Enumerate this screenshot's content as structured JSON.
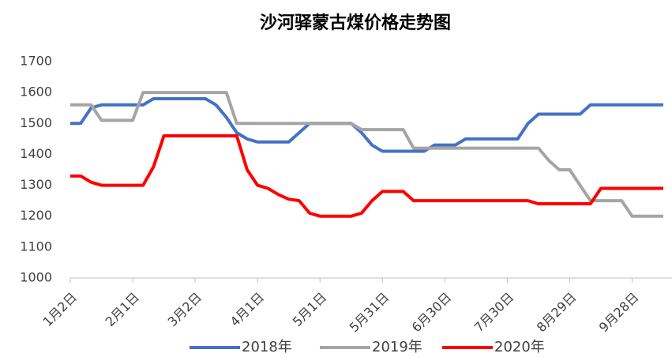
{
  "chart_data": {
    "type": "line",
    "title": "沙河驿蒙古煤价格走势图",
    "categories": [
      "1月2日",
      null,
      null,
      null,
      null,
      null,
      "2月1日",
      null,
      null,
      null,
      null,
      null,
      "3月2日",
      null,
      null,
      null,
      null,
      null,
      "4月1日",
      null,
      null,
      null,
      null,
      null,
      "5月1日",
      null,
      null,
      null,
      null,
      null,
      "5月31日",
      null,
      null,
      null,
      null,
      null,
      "6月30日",
      null,
      null,
      null,
      null,
      null,
      "7月30日",
      null,
      null,
      null,
      null,
      null,
      "8月29日",
      null,
      null,
      null,
      null,
      null,
      "9月28日",
      null,
      null,
      null
    ],
    "series": [
      {
        "name": "2018年",
        "color": "#4472c4",
        "values": [
          1500,
          1500,
          1550,
          1560,
          1560,
          1560,
          1560,
          1560,
          1580,
          1580,
          1580,
          1580,
          1580,
          1580,
          1560,
          1520,
          1470,
          1450,
          1440,
          1440,
          1440,
          1440,
          1470,
          1500,
          1500,
          1500,
          1500,
          1500,
          1470,
          1430,
          1410,
          1410,
          1410,
          1410,
          1410,
          1430,
          1430,
          1430,
          1450,
          1450,
          1450,
          1450,
          1450,
          1450,
          1500,
          1530,
          1530,
          1530,
          1530,
          1530,
          1560,
          1560,
          1560,
          1560,
          1560,
          1560,
          1560,
          1560
        ]
      },
      {
        "name": "2019年",
        "color": "#a5a5a5",
        "values": [
          1560,
          1560,
          1560,
          1510,
          1510,
          1510,
          1510,
          1600,
          1600,
          1600,
          1600,
          1600,
          1600,
          1600,
          1600,
          1600,
          1500,
          1500,
          1500,
          1500,
          1500,
          1500,
          1500,
          1500,
          1500,
          1500,
          1500,
          1500,
          1480,
          1480,
          1480,
          1480,
          1480,
          1420,
          1420,
          1420,
          1420,
          1420,
          1420,
          1420,
          1420,
          1420,
          1420,
          1420,
          1420,
          1420,
          1380,
          1350,
          1350,
          1300,
          1250,
          1250,
          1250,
          1250,
          1200,
          1200,
          1200,
          1200
        ]
      },
      {
        "name": "2020年",
        "color": "#ff0000",
        "values": [
          1330,
          1330,
          1310,
          1300,
          1300,
          1300,
          1300,
          1300,
          1360,
          1460,
          1460,
          1460,
          1460,
          1460,
          1460,
          1460,
          1460,
          1350,
          1300,
          1290,
          1270,
          1255,
          1250,
          1210,
          1200,
          1200,
          1200,
          1200,
          1210,
          1250,
          1280,
          1280,
          1280,
          1250,
          1250,
          1250,
          1250,
          1250,
          1250,
          1250,
          1250,
          1250,
          1250,
          1250,
          1250,
          1240,
          1240,
          1240,
          1240,
          1240,
          1240,
          1290,
          1290,
          1290,
          1290,
          1290,
          1290,
          1290
        ]
      }
    ],
    "ylim": [
      1000,
      1700
    ],
    "yticks": [
      1000,
      1100,
      1200,
      1300,
      1400,
      1500,
      1600,
      1700
    ],
    "grid": false,
    "legend": "bottom"
  }
}
